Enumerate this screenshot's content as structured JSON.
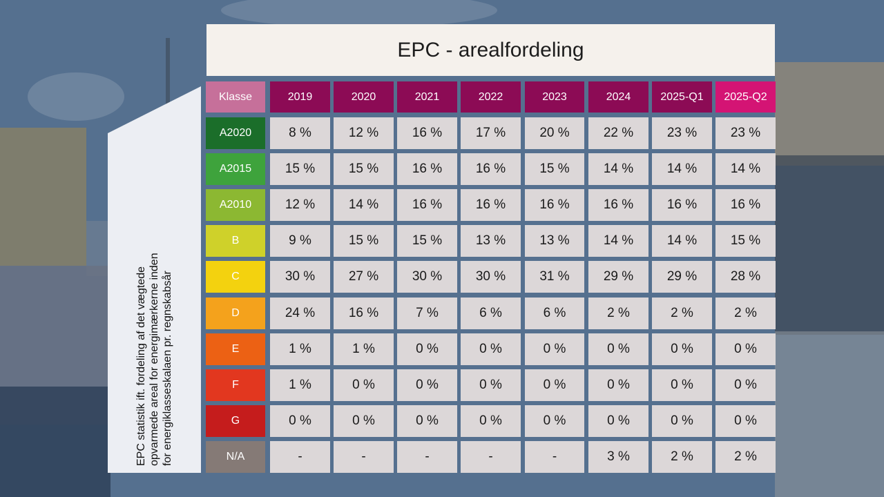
{
  "title": "EPC - arealfordeling",
  "side_label": {
    "lines": [
      "EPC statistik ift. fordeling af det vægtede",
      "opvarmede areal for energimærkerne inden",
      "for energiklasseskalaen pr. regnskabsår"
    ]
  },
  "table": {
    "corner_label": "Klasse",
    "columns": [
      "2019",
      "2020",
      "2021",
      "2022",
      "2023",
      "2024",
      "2025-Q1",
      "2025-Q2"
    ],
    "column_colors": [
      "#8c0b55",
      "#8c0b55",
      "#8c0b55",
      "#8c0b55",
      "#8c0b55",
      "#8c0b55",
      "#8c0b55",
      "#d41474"
    ],
    "corner_color": "#c6709a",
    "rows": [
      {
        "label": "A2020",
        "color": "#1b6e2a",
        "values": [
          "8 %",
          "12 %",
          "16 %",
          "17 %",
          "20 %",
          "22 %",
          "23 %",
          "23 %"
        ]
      },
      {
        "label": "A2015",
        "color": "#3ea33c",
        "values": [
          "15 %",
          "15 %",
          "16 %",
          "16 %",
          "15 %",
          "14 %",
          "14 %",
          "14 %"
        ]
      },
      {
        "label": "A2010",
        "color": "#8cb832",
        "values": [
          "12 %",
          "14 %",
          "16 %",
          "16 %",
          "16 %",
          "16 %",
          "16 %",
          "16 %"
        ]
      },
      {
        "label": "B",
        "color": "#cfd12a",
        "values": [
          "9 %",
          "15 %",
          "15 %",
          "13 %",
          "13 %",
          "14 %",
          "14 %",
          "15 %"
        ]
      },
      {
        "label": "C",
        "color": "#f3d20f",
        "values": [
          "30 %",
          "27 %",
          "30 %",
          "30 %",
          "31 %",
          "29 %",
          "29 %",
          "28 %"
        ]
      },
      {
        "label": "D",
        "color": "#f4a21c",
        "values": [
          "24 %",
          "16 %",
          "7 %",
          "6 %",
          "6 %",
          "2 %",
          "2 %",
          "2 %"
        ]
      },
      {
        "label": "E",
        "color": "#ec6114",
        "values": [
          "1 %",
          "1 %",
          "0 %",
          "0 %",
          "0 %",
          "0 %",
          "0 %",
          "0 %"
        ]
      },
      {
        "label": "F",
        "color": "#e2371f",
        "values": [
          "1 %",
          "0 %",
          "0 %",
          "0 %",
          "0 %",
          "0 %",
          "0 %",
          "0 %"
        ]
      },
      {
        "label": "G",
        "color": "#c51c1c",
        "values": [
          "0 %",
          "0 %",
          "0 %",
          "0 %",
          "0 %",
          "0 %",
          "0 %",
          "0 %"
        ]
      },
      {
        "label": "N/A",
        "color": "#857a76",
        "values": [
          "-",
          "-",
          "-",
          "-",
          "-",
          "3 %",
          "2 %",
          "2 %"
        ]
      }
    ]
  }
}
